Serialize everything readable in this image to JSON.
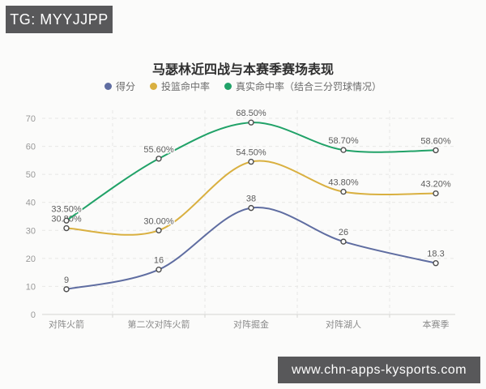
{
  "badge_top": {
    "label": "TG: MYYJJPP"
  },
  "badge_bottom": {
    "label": "www.chn-apps-kysports.com"
  },
  "chart_data": {
    "type": "line",
    "title": "马瑟林近四战与本赛季赛场表现",
    "categories": [
      "对阵火箭",
      "第二次对阵火箭",
      "对阵掘金",
      "对阵湖人",
      "本赛季"
    ],
    "series": [
      {
        "name": "得分",
        "color": "#5f6da1",
        "values": [
          9,
          16,
          38,
          26,
          18.3
        ],
        "labels": [
          "9",
          "16",
          "38",
          "26",
          "18.3"
        ]
      },
      {
        "name": "投篮命中率",
        "color": "#d9b040",
        "values": [
          30.8,
          30.0,
          54.5,
          43.8,
          43.2
        ],
        "labels": [
          "30.80%",
          "30.00%",
          "54.50%",
          "43.80%",
          "43.20%"
        ]
      },
      {
        "name": "真实命中率（结合三分罚球情况）",
        "color": "#21a268",
        "values": [
          33.5,
          55.6,
          68.5,
          58.7,
          58.6
        ],
        "labels": [
          "33.50%",
          "55.60%",
          "68.50%",
          "58.70%",
          "58.60%"
        ]
      }
    ],
    "xlabel": "",
    "ylabel": "",
    "y_ticks": [
      0,
      10,
      20,
      30,
      40,
      50,
      60,
      70
    ],
    "ylim": [
      0,
      70
    ],
    "grid": true,
    "grid_style": "dashed",
    "smooth": true,
    "legend_position": "top",
    "marker": "empty-circle",
    "colors": {
      "axis_label": "#999999",
      "category_label": "#8a8a8a",
      "data_label": "#5c5c5c",
      "grid_line": "#e7e7e5",
      "axis_line": "#d4d4d2",
      "marker_ring": "#4d4d4d",
      "badge_bg": "#58585a"
    }
  }
}
